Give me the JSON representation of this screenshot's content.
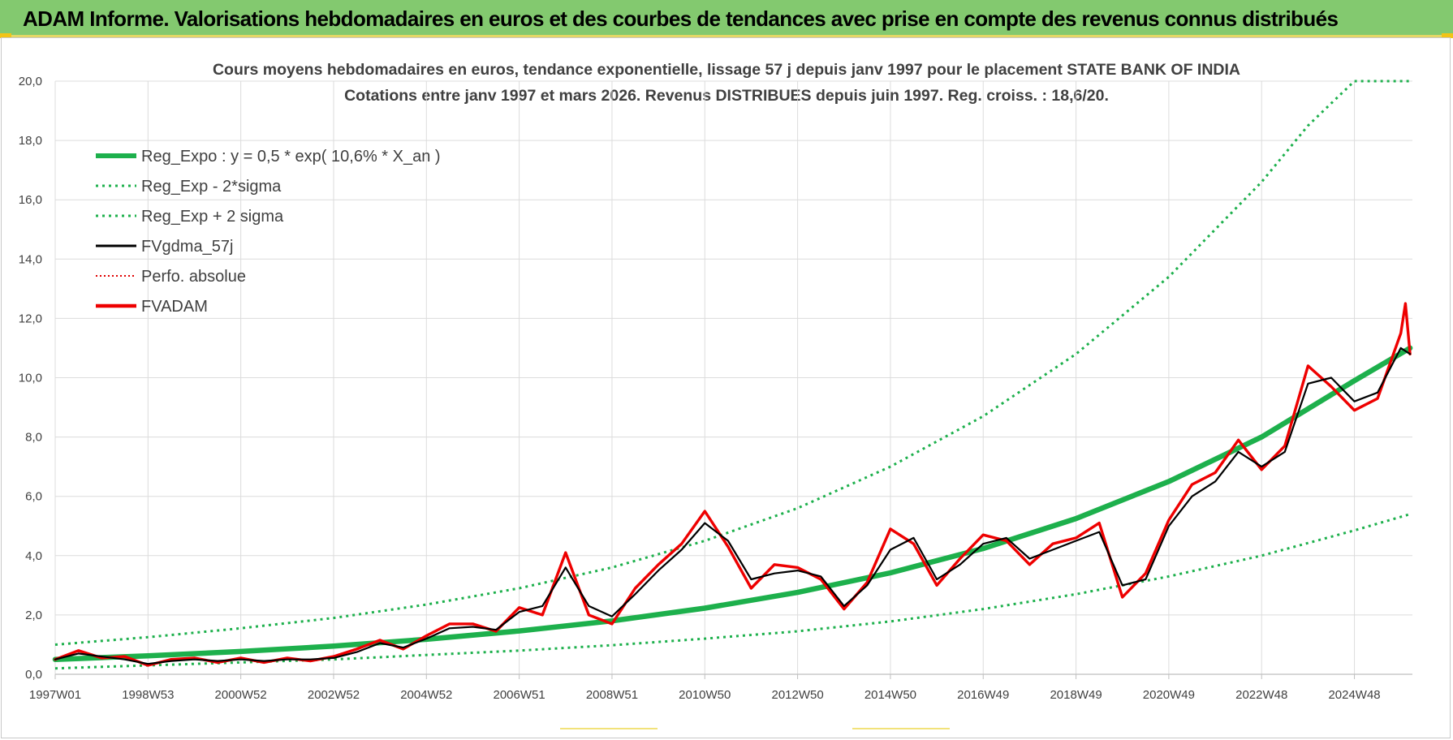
{
  "banner": {
    "title": "ADAM Informe. Valorisations hebdomadaires en euros et des courbes de tendances avec prise en compte des revenus connus distribués"
  },
  "colors": {
    "banner_bg": "#83c96f",
    "reg_expo": "#1db04c",
    "band": "#1db04c",
    "fvgdma": "#000000",
    "perfo": "#e00000",
    "fvadam": "#ee0000",
    "grid": "#dcdcdc"
  },
  "chart_data": {
    "type": "line",
    "title": "Cours moyens hebdomadaires en euros, tendance exponentielle, lissage 57 j depuis janv 1997  pour le placement STATE BANK OF INDIA",
    "subtitle": "Cotations entre janv 1997 et mars 2026. Revenus DISTRIBUES depuis juin 1997. Reg. croiss. : 18,6/20.",
    "xlabel": "",
    "ylabel": "",
    "x_range": [
      1997.0,
      2026.25
    ],
    "ylim": [
      0,
      20
    ],
    "grid": true,
    "legend_position": "top-left",
    "y_ticks": [
      "0,0",
      "2,0",
      "4,0",
      "6,0",
      "8,0",
      "10,0",
      "12,0",
      "14,0",
      "16,0",
      "18,0",
      "20,0"
    ],
    "x_ticks": [
      {
        "label": "1997W01",
        "year": 1997.0
      },
      {
        "label": "1998W53",
        "year": 1999.0
      },
      {
        "label": "2000W52",
        "year": 2001.0
      },
      {
        "label": "2002W52",
        "year": 2003.0
      },
      {
        "label": "2004W52",
        "year": 2005.0
      },
      {
        "label": "2006W51",
        "year": 2007.0
      },
      {
        "label": "2008W51",
        "year": 2009.0
      },
      {
        "label": "2010W50",
        "year": 2011.0
      },
      {
        "label": "2012W50",
        "year": 2013.0
      },
      {
        "label": "2014W50",
        "year": 2015.0
      },
      {
        "label": "2016W49",
        "year": 2017.0
      },
      {
        "label": "2018W49",
        "year": 2019.0
      },
      {
        "label": "2020W49",
        "year": 2021.0
      },
      {
        "label": "2022W48",
        "year": 2023.0
      },
      {
        "label": "2024W48",
        "year": 2025.0
      }
    ],
    "legend": [
      {
        "label": "Reg_Expo : y = 0,5 * exp( 10,6% *  X_an )",
        "key": "reg_expo",
        "style": "solid-thick"
      },
      {
        "label": "Reg_Exp - 2*sigma",
        "key": "band_low",
        "style": "dotted-green"
      },
      {
        "label": "Reg_Exp + 2 sigma",
        "key": "band_high",
        "style": "dotted-green"
      },
      {
        "label": "FVgdma_57j",
        "key": "fvgdma",
        "style": "solid-black"
      },
      {
        "label": "Perfo. absolue",
        "key": "perfo",
        "style": "dotted-red"
      },
      {
        "label": "FVADAM",
        "key": "fvadam",
        "style": "solid-red-thick"
      }
    ],
    "series": [
      {
        "name": "Reg_Expo",
        "x": [
          1997,
          1999,
          2001,
          2003,
          2005,
          2007,
          2009,
          2011,
          2013,
          2015,
          2017,
          2019,
          2021,
          2023,
          2025,
          2026.2
        ],
        "values": [
          0.5,
          0.62,
          0.77,
          0.95,
          1.18,
          1.46,
          1.8,
          2.23,
          2.76,
          3.42,
          4.24,
          5.25,
          6.5,
          8.0,
          9.9,
          11.0
        ]
      },
      {
        "name": "Reg_Exp - 2*sigma",
        "x": [
          1997,
          1999,
          2001,
          2003,
          2005,
          2007,
          2009,
          2011,
          2013,
          2015,
          2017,
          2019,
          2021,
          2023,
          2025,
          2026.2
        ],
        "values": [
          0.2,
          0.3,
          0.4,
          0.5,
          0.65,
          0.8,
          0.98,
          1.2,
          1.45,
          1.78,
          2.2,
          2.7,
          3.3,
          4.0,
          4.85,
          5.4
        ]
      },
      {
        "name": "Reg_Exp + 2 sigma",
        "x": [
          1997,
          1999,
          2001,
          2003,
          2005,
          2007,
          2009,
          2011,
          2013,
          2015,
          2017,
          2019,
          2021,
          2023,
          2024.0,
          2025.0,
          2026.2
        ],
        "values": [
          1.0,
          1.25,
          1.55,
          1.9,
          2.35,
          2.9,
          3.6,
          4.5,
          5.6,
          7.0,
          8.7,
          10.8,
          13.4,
          16.6,
          18.5,
          20.0,
          20.0
        ]
      },
      {
        "name": "FVgdma_57j",
        "x": [
          1997,
          1997.5,
          1998,
          1998.5,
          1999,
          1999.5,
          2000,
          2000.5,
          2001,
          2001.5,
          2002,
          2002.5,
          2003,
          2003.5,
          2004,
          2004.5,
          2005,
          2005.5,
          2006,
          2006.5,
          2007,
          2007.5,
          2008,
          2008.5,
          2009,
          2009.5,
          2010,
          2010.5,
          2011,
          2011.5,
          2012,
          2012.5,
          2013,
          2013.5,
          2014,
          2014.5,
          2015,
          2015.5,
          2016,
          2016.5,
          2017,
          2017.5,
          2018,
          2018.5,
          2019,
          2019.5,
          2020,
          2020.5,
          2021,
          2021.5,
          2022,
          2022.5,
          2023,
          2023.5,
          2024,
          2024.5,
          2025,
          2025.5,
          2026,
          2026.2
        ],
        "values": [
          0.5,
          0.7,
          0.6,
          0.5,
          0.35,
          0.45,
          0.5,
          0.45,
          0.5,
          0.45,
          0.5,
          0.5,
          0.55,
          0.75,
          1.05,
          0.9,
          1.2,
          1.55,
          1.6,
          1.5,
          2.1,
          2.3,
          3.6,
          2.3,
          1.95,
          2.7,
          3.5,
          4.2,
          5.1,
          4.5,
          3.2,
          3.4,
          3.5,
          3.3,
          2.3,
          3.0,
          4.2,
          4.6,
          3.2,
          3.7,
          4.4,
          4.6,
          3.9,
          4.2,
          4.5,
          4.8,
          3.0,
          3.2,
          5.0,
          6.0,
          6.5,
          7.5,
          7.0,
          7.5,
          9.8,
          10.0,
          9.2,
          9.5,
          11.0,
          10.8
        ]
      },
      {
        "name": "FVADAM",
        "x": [
          1997,
          1997.5,
          1998,
          1998.5,
          1999,
          1999.5,
          2000,
          2000.5,
          2001,
          2001.5,
          2002,
          2002.5,
          2003,
          2003.5,
          2004,
          2004.5,
          2005,
          2005.5,
          2006,
          2006.5,
          2007,
          2007.5,
          2008,
          2008.5,
          2009,
          2009.5,
          2010,
          2010.5,
          2011,
          2011.5,
          2012,
          2012.5,
          2013,
          2013.5,
          2014,
          2014.5,
          2015,
          2015.5,
          2016,
          2016.5,
          2017,
          2017.5,
          2018,
          2018.5,
          2019,
          2019.5,
          2020,
          2020.5,
          2021,
          2021.5,
          2022,
          2022.5,
          2023,
          2023.5,
          2024,
          2024.5,
          2025,
          2025.5,
          2026,
          2026.1,
          2026.2
        ],
        "values": [
          0.5,
          0.8,
          0.55,
          0.6,
          0.3,
          0.5,
          0.55,
          0.4,
          0.55,
          0.4,
          0.55,
          0.45,
          0.6,
          0.85,
          1.15,
          0.85,
          1.3,
          1.7,
          1.7,
          1.45,
          2.25,
          2.0,
          4.1,
          2.0,
          1.7,
          2.9,
          3.7,
          4.4,
          5.5,
          4.3,
          2.9,
          3.7,
          3.6,
          3.2,
          2.2,
          3.1,
          4.9,
          4.4,
          3.0,
          3.9,
          4.7,
          4.5,
          3.7,
          4.4,
          4.6,
          5.1,
          2.6,
          3.4,
          5.2,
          6.4,
          6.8,
          7.9,
          6.9,
          7.7,
          10.4,
          9.7,
          8.9,
          9.3,
          11.5,
          12.5,
          10.8
        ]
      }
    ]
  }
}
